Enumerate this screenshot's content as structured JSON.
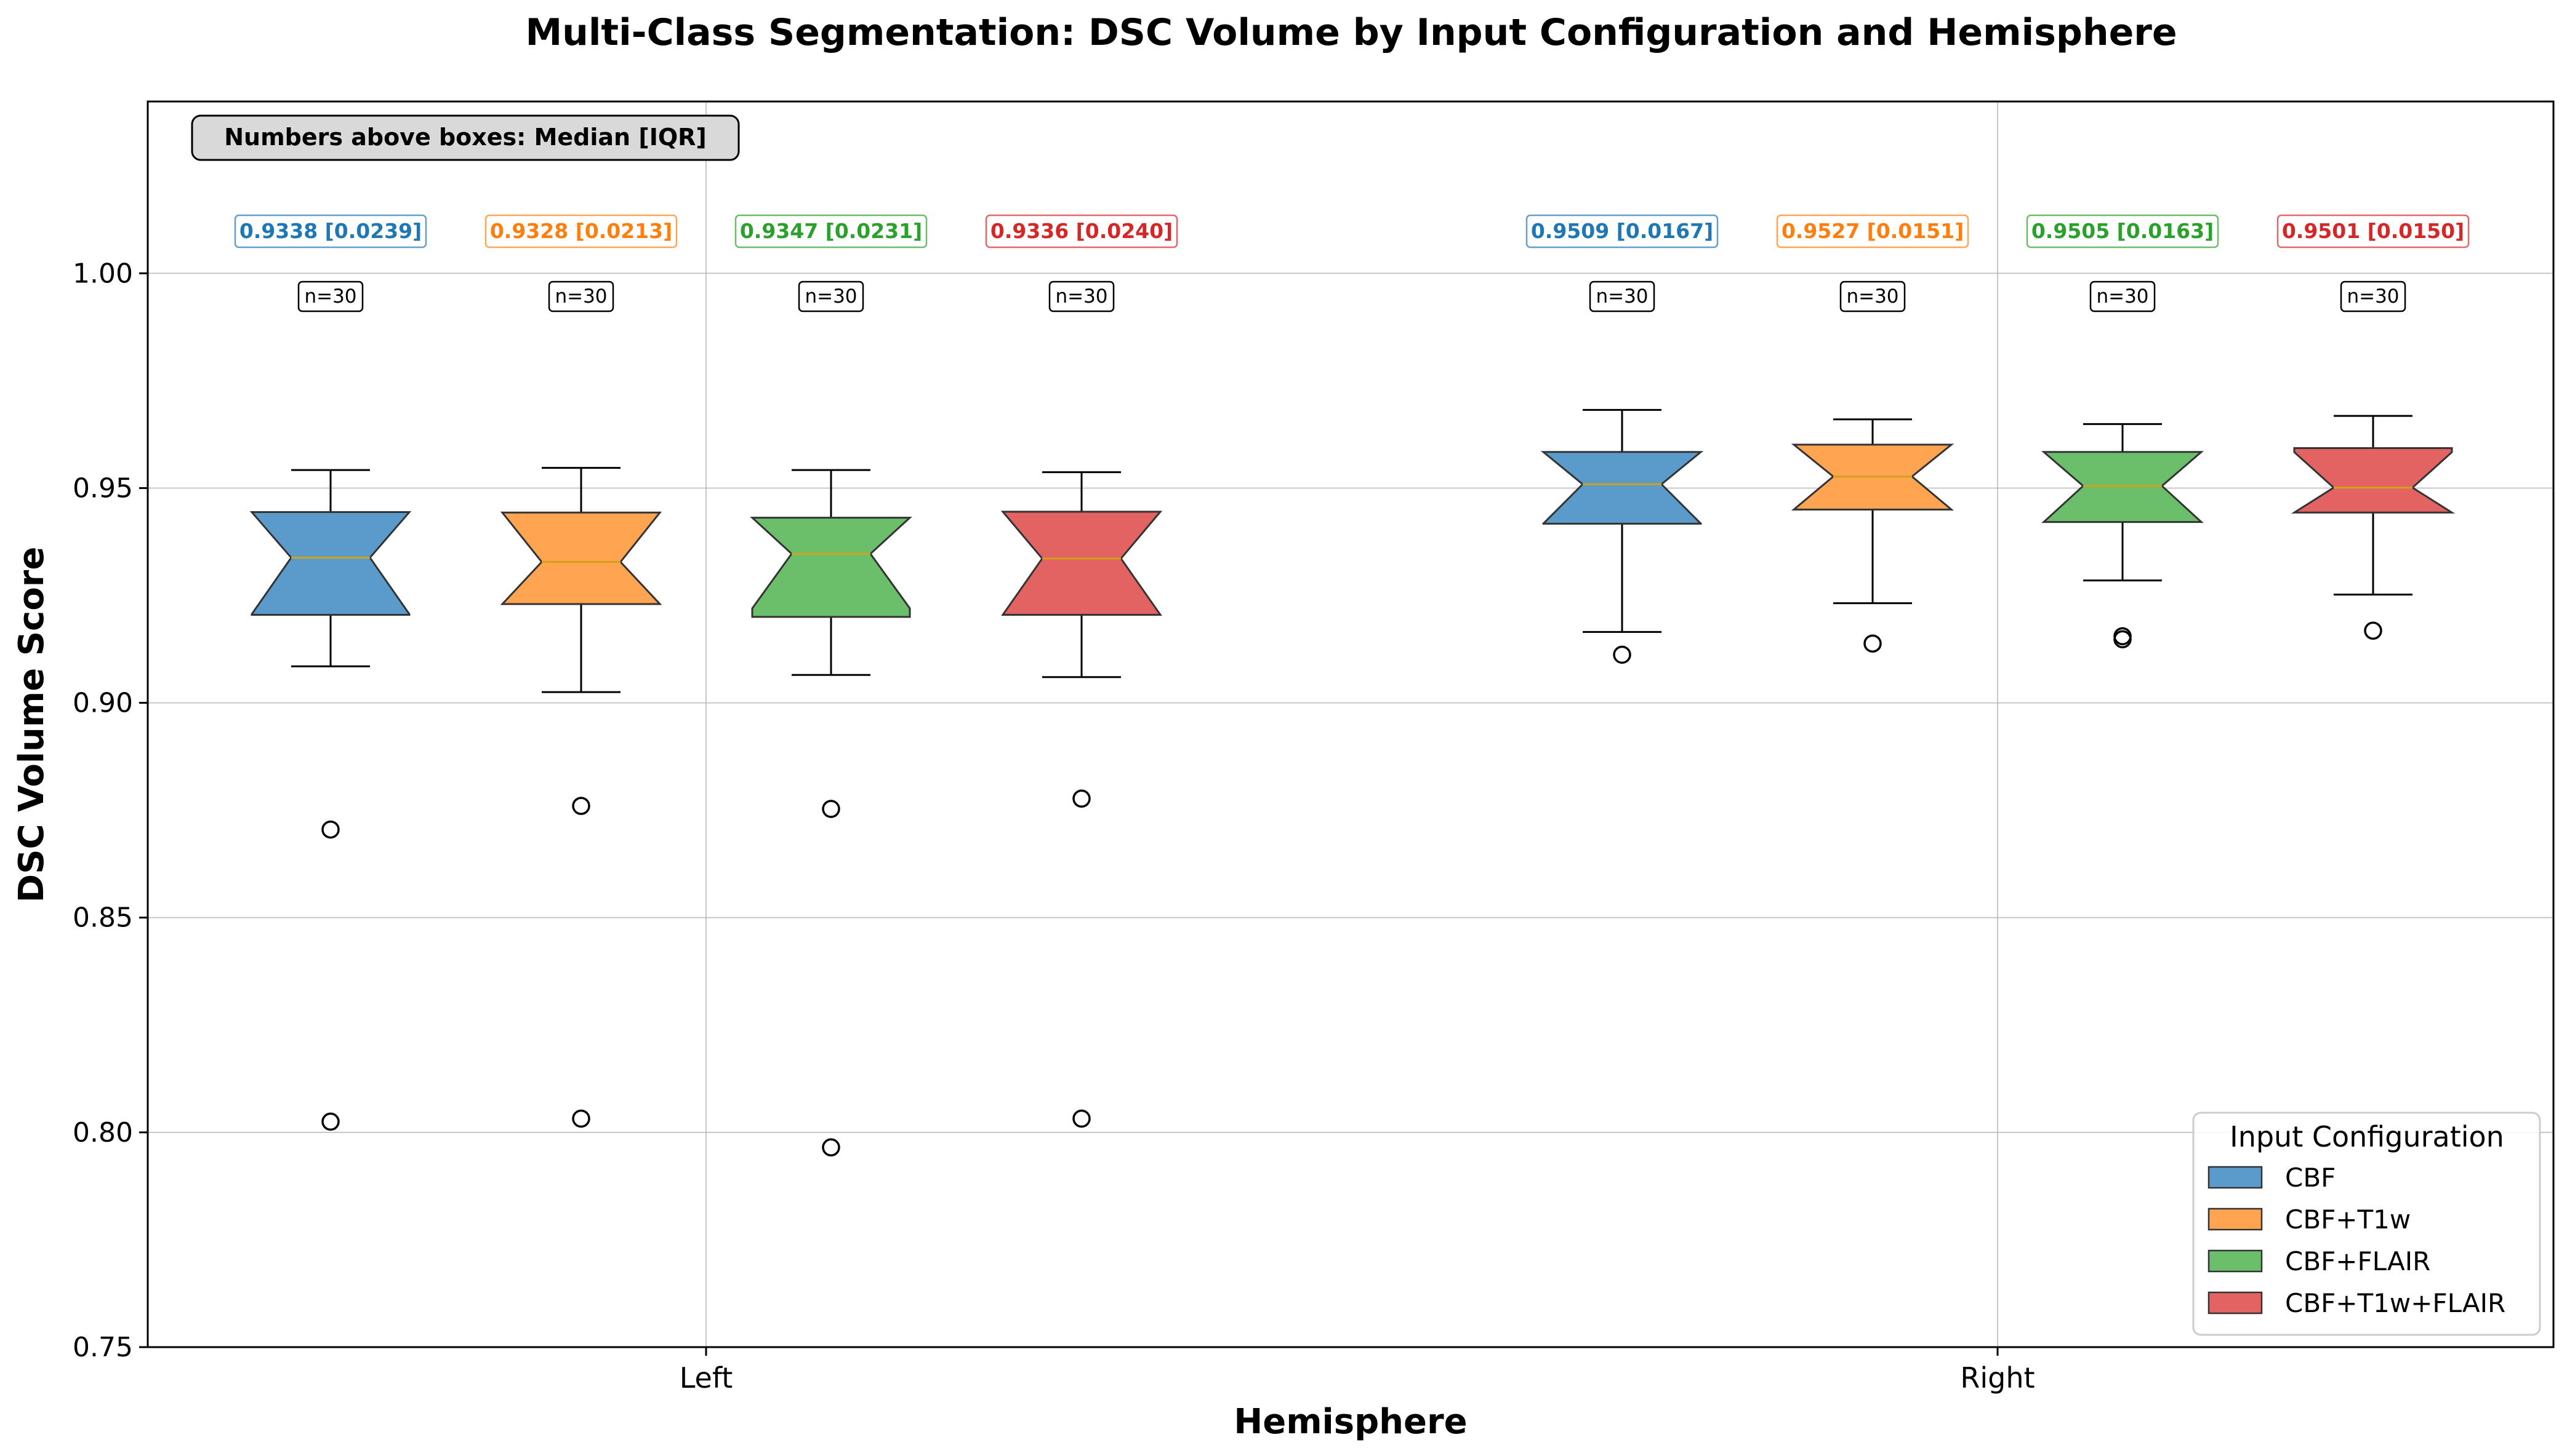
{
  "chart_data": {
    "type": "boxplot",
    "title": "Multi-Class Segmentation: DSC Volume by Input Configuration and Hemisphere",
    "xlabel": "Hemisphere",
    "ylabel": "DSC Volume Score",
    "ylim": [
      0.75,
      1.04
    ],
    "yticks": [
      "0.75",
      "0.80",
      "0.85",
      "0.90",
      "0.95",
      "1.00"
    ],
    "categories": [
      "Left",
      "Right"
    ],
    "grid": true,
    "notched": true,
    "annotation_note": "Numbers above boxes: Median [IQR]",
    "legend": {
      "title": "Input Configuration",
      "position": "lower-right"
    },
    "series": [
      {
        "name": "CBF",
        "color": "#1f77b4",
        "fill": "#5b9bcc",
        "boxes": [
          {
            "hemisphere": "Left",
            "median": 0.9338,
            "q1": 0.9205,
            "q3": 0.9444,
            "whisker_low": 0.9085,
            "whisker_high": 0.9542,
            "outliers": [
              0.8705,
              0.8025
            ],
            "label": "0.9338 [0.0239]",
            "n": "n=30"
          },
          {
            "hemisphere": "Right",
            "median": 0.9509,
            "q1": 0.9417,
            "q3": 0.9584,
            "whisker_low": 0.9165,
            "whisker_high": 0.9682,
            "outliers": [
              0.9112
            ],
            "label": "0.9509 [0.0167]",
            "n": "n=30"
          }
        ]
      },
      {
        "name": "CBF+T1w",
        "color": "#ff7f0e",
        "fill": "#ffa552",
        "boxes": [
          {
            "hemisphere": "Left",
            "median": 0.9328,
            "q1": 0.923,
            "q3": 0.9443,
            "whisker_low": 0.9025,
            "whisker_high": 0.9547,
            "outliers": [
              0.876,
              0.8032
            ],
            "label": "0.9328 [0.0213]",
            "n": "n=30"
          },
          {
            "hemisphere": "Right",
            "median": 0.9527,
            "q1": 0.945,
            "q3": 0.9601,
            "whisker_low": 0.9232,
            "whisker_high": 0.966,
            "outliers": [
              0.9138
            ],
            "label": "0.9527 [0.0151]",
            "n": "n=30"
          }
        ]
      },
      {
        "name": "CBF+FLAIR",
        "color": "#2ca02c",
        "fill": "#6bbf6b",
        "boxes": [
          {
            "hemisphere": "Left",
            "median": 0.9347,
            "q1": 0.92,
            "q3": 0.9431,
            "whisker_low": 0.9065,
            "whisker_high": 0.9542,
            "outliers": [
              0.8753,
              0.7965
            ],
            "label": "0.9347 [0.0231]",
            "n": "n=30"
          },
          {
            "hemisphere": "Right",
            "median": 0.9505,
            "q1": 0.9421,
            "q3": 0.9584,
            "whisker_low": 0.9285,
            "whisker_high": 0.9649,
            "outliers": [
              0.9155,
              0.9148
            ],
            "label": "0.9505 [0.0163]",
            "n": "n=30"
          }
        ]
      },
      {
        "name": "CBF+T1w+FLAIR",
        "color": "#d62728",
        "fill": "#e36363",
        "boxes": [
          {
            "hemisphere": "Left",
            "median": 0.9336,
            "q1": 0.9205,
            "q3": 0.9445,
            "whisker_low": 0.906,
            "whisker_high": 0.9537,
            "outliers": [
              0.8777,
              0.8032
            ],
            "label": "0.9336 [0.0240]",
            "n": "n=30"
          },
          {
            "hemisphere": "Right",
            "median": 0.9501,
            "q1": 0.9443,
            "q3": 0.9593,
            "whisker_low": 0.9252,
            "whisker_high": 0.9668,
            "outliers": [
              0.9168
            ],
            "label": "0.9501 [0.0150]",
            "n": "n=30"
          }
        ]
      }
    ]
  }
}
